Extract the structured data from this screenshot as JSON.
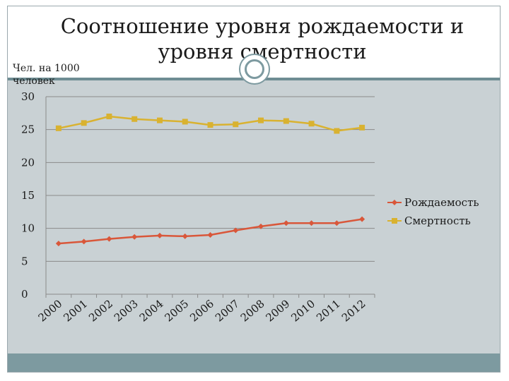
{
  "slide": {
    "title_line1": "Соотношение уровня рождаемости и",
    "title_line2": "уровня смертности",
    "unit_line1": "Чел. на 1000",
    "unit_line2": "человек"
  },
  "colors": {
    "birth": "#d9573a",
    "death": "#d9b230",
    "plot_background": "#c9d1d4",
    "band": "#7d9aa0"
  },
  "chart_data": {
    "type": "line",
    "title": "Соотношение уровня рождаемости и уровня смертности",
    "ylabel": "Чел. на 1000 человек",
    "xlabel": "",
    "categories": [
      "2000",
      "2001",
      "2002",
      "2003",
      "2004",
      "2005",
      "2006",
      "2007",
      "2008",
      "2009",
      "2010",
      "2011",
      "2012"
    ],
    "yticks": [
      "0",
      "5",
      "10",
      "15",
      "20",
      "25",
      "30"
    ],
    "ylim": [
      0,
      30
    ],
    "grid": true,
    "legend_position": "right",
    "series": [
      {
        "name": "Рождаемость",
        "marker": "diamond",
        "values": [
          7.7,
          8.0,
          8.4,
          8.7,
          8.9,
          8.8,
          9.0,
          9.7,
          10.3,
          10.8,
          10.8,
          10.8,
          11.4
        ]
      },
      {
        "name": "Смертность",
        "marker": "square",
        "values": [
          25.2,
          26.0,
          27.0,
          26.6,
          26.4,
          26.2,
          25.7,
          25.8,
          26.4,
          26.3,
          25.9,
          24.8,
          25.3
        ]
      }
    ]
  }
}
